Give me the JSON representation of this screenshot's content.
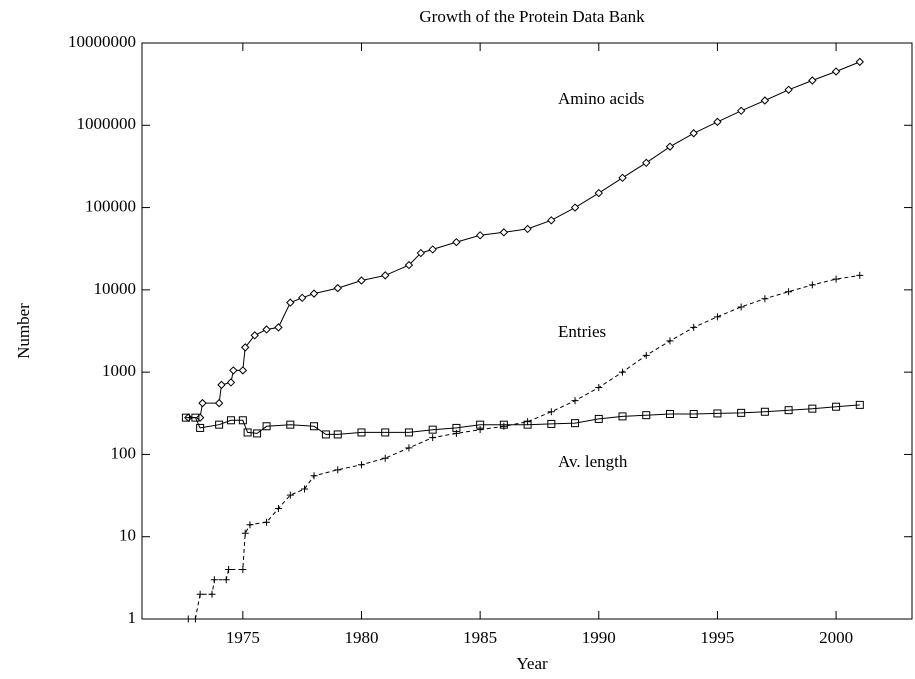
{
  "chart_data": {
    "type": "line",
    "title": "Growth of the Protein Data Bank",
    "x_label": "Year",
    "y_label": "Number",
    "xlim": [
      1970.75,
      2003.2
    ],
    "ylim": [
      1,
      10000000
    ],
    "y_scale": "log",
    "xticks": [
      1975,
      1980,
      1985,
      1990,
      1995,
      2000
    ],
    "yticks": [
      1,
      10,
      100,
      1000,
      10000,
      100000,
      1000000,
      10000000
    ],
    "series": [
      {
        "name": "Amino acids",
        "color": "#000000",
        "marker": "diamond",
        "line": "solid",
        "x": [
          1972.7,
          1973.2,
          1973.3,
          1974,
          1974.1,
          1974.5,
          1974.6,
          1975,
          1975.1,
          1975.5,
          1976,
          1976.5,
          1977,
          1977.5,
          1978,
          1979,
          1980,
          1981,
          1982,
          1982.5,
          1983,
          1984,
          1985,
          1986,
          1987,
          1988,
          1989,
          1990,
          1991,
          1992,
          1993,
          1994,
          1995,
          1996,
          1997,
          1998,
          1999,
          2000,
          2001
        ],
        "values": [
          280,
          280,
          420,
          420,
          700,
          750,
          1050,
          1050,
          2000,
          2800,
          3300,
          3500,
          7000,
          8000,
          9000,
          10500,
          13000,
          15000,
          20000,
          28000,
          31000,
          38000,
          46000,
          50000,
          55000,
          70000,
          100000,
          150000,
          230000,
          350000,
          550000,
          800000,
          1100000,
          1500000,
          2000000,
          2700000,
          3500000,
          4500000,
          5900000
        ]
      },
      {
        "name": "Entries",
        "color": "#000000",
        "marker": "plus",
        "line": "dashed",
        "x": [
          1972.7,
          1973,
          1973.2,
          1973.7,
          1973.8,
          1974.3,
          1974.4,
          1975,
          1975.1,
          1975.3,
          1976,
          1976.5,
          1977,
          1977.6,
          1978,
          1979,
          1980,
          1981,
          1982,
          1983,
          1984,
          1985,
          1986,
          1987,
          1988,
          1989,
          1990,
          1991,
          1992,
          1993,
          1994,
          1995,
          1996,
          1997,
          1998,
          1999,
          2000,
          2001
        ],
        "values": [
          1,
          1,
          2,
          2,
          3,
          3,
          4,
          4,
          11,
          14,
          15,
          22,
          32,
          38,
          55,
          65,
          75,
          90,
          120,
          160,
          180,
          200,
          220,
          250,
          330,
          450,
          650,
          1000,
          1600,
          2400,
          3500,
          4700,
          6200,
          7800,
          9500,
          11500,
          13500,
          15000
        ]
      },
      {
        "name": "Av. length",
        "color": "#000000",
        "marker": "square",
        "line": "solid",
        "x": [
          1972.6,
          1973,
          1973.2,
          1974,
          1974.5,
          1975,
          1975.2,
          1975.6,
          1976,
          1977,
          1978,
          1978.5,
          1979,
          1980,
          1981,
          1982,
          1983,
          1984,
          1985,
          1986,
          1987,
          1988,
          1989,
          1990,
          1991,
          1992,
          1993,
          1994,
          1995,
          1996,
          1997,
          1998,
          1999,
          2000,
          2001
        ],
        "values": [
          280,
          280,
          210,
          230,
          260,
          260,
          185,
          180,
          220,
          230,
          220,
          175,
          175,
          185,
          185,
          185,
          200,
          210,
          230,
          230,
          230,
          235,
          240,
          270,
          290,
          300,
          310,
          310,
          315,
          320,
          330,
          345,
          360,
          380,
          400
        ]
      }
    ]
  }
}
